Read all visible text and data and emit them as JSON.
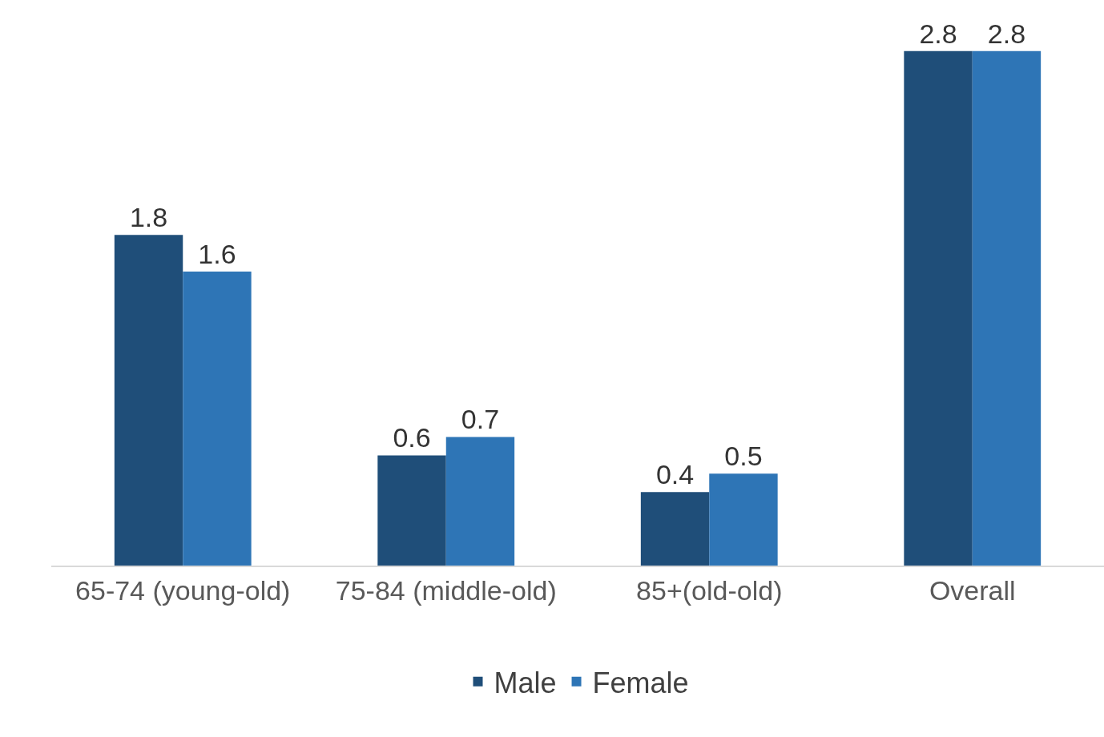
{
  "chart_data": {
    "type": "bar",
    "categories": [
      "65-74 (young-old)",
      "75-84 (middle-old)",
      "85+(old-old)",
      "Overall"
    ],
    "series": [
      {
        "name": "Male",
        "color": "#1f4e79",
        "values": [
          1.8,
          0.6,
          0.4,
          2.8
        ]
      },
      {
        "name": "Female",
        "color": "#2e75b6",
        "values": [
          1.6,
          0.7,
          0.5,
          2.8
        ]
      }
    ],
    "tick_labels": "x",
    "data_labels": true,
    "legend": "bottom"
  }
}
